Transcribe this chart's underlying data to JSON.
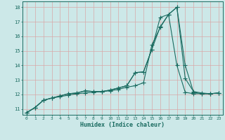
{
  "xlabel": "Humidex (Indice chaleur)",
  "bg_color": "#cce8e8",
  "grid_color": "#d8a8a8",
  "line_color": "#1a6b60",
  "xlim": [
    -0.5,
    23.5
  ],
  "ylim": [
    10.6,
    18.4
  ],
  "xticks": [
    0,
    1,
    2,
    3,
    4,
    5,
    6,
    7,
    8,
    9,
    10,
    11,
    12,
    13,
    14,
    15,
    16,
    17,
    18,
    19,
    20,
    21,
    22,
    23
  ],
  "yticks": [
    11,
    12,
    13,
    14,
    15,
    16,
    17,
    18
  ],
  "line1_x": [
    0,
    1,
    2,
    3,
    4,
    5,
    6,
    7,
    8,
    9,
    10,
    11,
    12,
    13,
    14,
    15,
    16,
    17,
    18,
    19,
    20,
    21,
    22,
    23
  ],
  "line1_y": [
    10.75,
    11.1,
    11.6,
    11.75,
    11.85,
    11.95,
    12.05,
    12.1,
    12.15,
    12.2,
    12.25,
    12.35,
    12.5,
    12.6,
    12.8,
    15.4,
    16.6,
    17.5,
    14.0,
    12.15,
    12.05,
    12.05,
    12.05,
    12.1
  ],
  "line2_x": [
    0,
    1,
    2,
    3,
    4,
    5,
    6,
    7,
    8,
    9,
    10,
    11,
    12,
    13,
    14,
    15,
    16,
    17,
    18,
    19,
    20,
    21,
    22,
    23
  ],
  "line2_y": [
    10.75,
    11.1,
    11.6,
    11.75,
    11.9,
    12.05,
    12.1,
    12.25,
    12.2,
    12.2,
    12.3,
    12.45,
    12.6,
    13.5,
    13.55,
    15.1,
    17.3,
    17.5,
    18.0,
    13.1,
    12.2,
    12.1,
    12.05,
    12.1
  ],
  "line3_x": [
    0,
    1,
    2,
    3,
    4,
    5,
    6,
    7,
    8,
    9,
    10,
    11,
    12,
    13,
    14,
    15,
    16,
    17,
    18,
    19,
    20,
    21,
    22,
    23
  ],
  "line3_y": [
    10.75,
    11.1,
    11.6,
    11.75,
    11.9,
    12.05,
    12.1,
    12.25,
    12.2,
    12.2,
    12.3,
    12.45,
    12.6,
    13.5,
    13.55,
    15.1,
    16.65,
    17.5,
    18.0,
    14.0,
    12.15,
    12.05,
    12.05,
    12.1
  ]
}
